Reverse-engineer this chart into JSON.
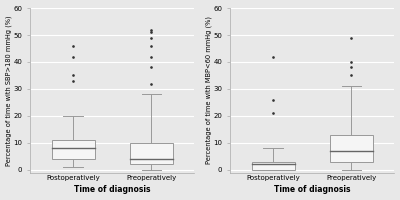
{
  "left_plot": {
    "ylabel": "Percentage of time with SBP>180 mmHg (%)",
    "xlabel": "Time of diagnosis",
    "ylim": [
      -1,
      60
    ],
    "yticks": [
      0,
      10,
      20,
      30,
      40,
      50,
      60
    ],
    "categories": [
      "Postoperatively",
      "Preoperatively"
    ],
    "boxes": [
      {
        "q1": 4,
        "median": 8,
        "q3": 11,
        "whisker_low": 1,
        "whisker_high": 20,
        "fliers": [
          33,
          35,
          42,
          46
        ]
      },
      {
        "q1": 2,
        "median": 4,
        "q3": 10,
        "whisker_low": 0,
        "whisker_high": 28,
        "fliers": [
          32,
          38,
          42,
          46,
          49,
          51,
          52
        ]
      }
    ]
  },
  "right_plot": {
    "ylabel": "Percentage of time with MBP<60 mmHg (%)",
    "xlabel": "Time of diagnosis",
    "ylim": [
      -1,
      60
    ],
    "yticks": [
      0,
      10,
      20,
      30,
      40,
      50,
      60
    ],
    "categories": [
      "Postoperatively",
      "Preoperatively"
    ],
    "boxes": [
      {
        "q1": 0,
        "median": 2,
        "q3": 3,
        "whisker_low": 0,
        "whisker_high": 8,
        "fliers": [
          21,
          26,
          42
        ]
      },
      {
        "q1": 3,
        "median": 7,
        "q3": 13,
        "whisker_low": 0,
        "whisker_high": 31,
        "fliers": [
          35,
          38,
          40,
          49
        ]
      }
    ]
  },
  "bg_color": "#e8e8e8",
  "box_color": "#f5f5f5",
  "median_color": "#666666",
  "whisker_color": "#999999",
  "flier_color": "#333333",
  "grid_color": "#ffffff",
  "axis_color": "#aaaaaa",
  "tick_font_size": 5.0,
  "xlabel_font_size": 5.5,
  "ylabel_font_size": 4.8
}
